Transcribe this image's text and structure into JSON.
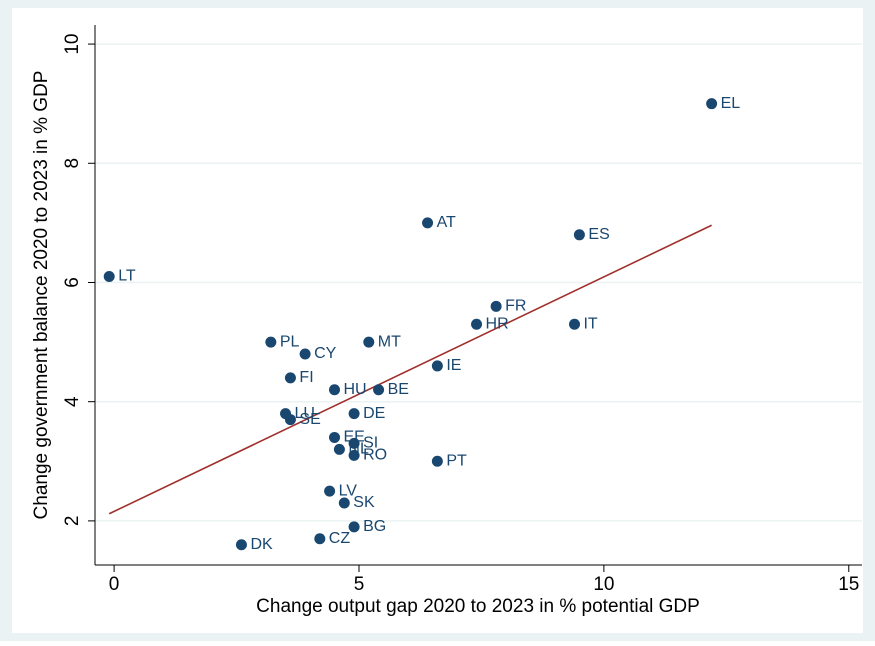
{
  "chart_data": {
    "type": "scatter",
    "xlabel": "Change output gap 2020 to 2023 in % potential GDP",
    "ylabel": "Change government balance 2020 to 2023 in % GDP",
    "xlim": [
      -0.39,
      15.27
    ],
    "ylim": [
      1.26,
      10.32
    ],
    "xticks": [
      0,
      5,
      10,
      15
    ],
    "yticks": [
      2,
      4,
      6,
      8,
      10
    ],
    "grid": true,
    "color": "#1a476f",
    "labels": [
      "EL",
      "AT",
      "ES",
      "LT",
      "FR",
      "HR",
      "IT",
      "PL",
      "MT",
      "CY",
      "IE",
      "FI",
      "HU",
      "BE",
      "LU",
      "DE",
      "SE",
      "EE",
      "SI",
      "NL",
      "RO",
      "PT",
      "LV",
      "SK",
      "BG",
      "CZ",
      "DK"
    ],
    "x": [
      12.2,
      6.4,
      9.5,
      -0.1,
      7.8,
      7.4,
      9.4,
      3.2,
      5.2,
      3.9,
      6.6,
      3.6,
      4.5,
      5.4,
      3.5,
      4.9,
      3.6,
      4.5,
      4.9,
      4.6,
      4.9,
      6.6,
      4.4,
      4.7,
      4.9,
      4.2,
      2.6
    ],
    "y": [
      9.0,
      7.0,
      6.8,
      6.1,
      5.6,
      5.3,
      5.3,
      5.0,
      5.0,
      4.8,
      4.6,
      4.4,
      4.2,
      4.2,
      3.8,
      3.8,
      3.7,
      3.4,
      3.3,
      3.2,
      3.1,
      3.0,
      2.5,
      2.3,
      1.9,
      1.7,
      1.6
    ],
    "fit": {
      "x": [
        -0.1,
        12.2
      ],
      "y": [
        2.12,
        6.96
      ],
      "color": "#a0302c"
    }
  }
}
